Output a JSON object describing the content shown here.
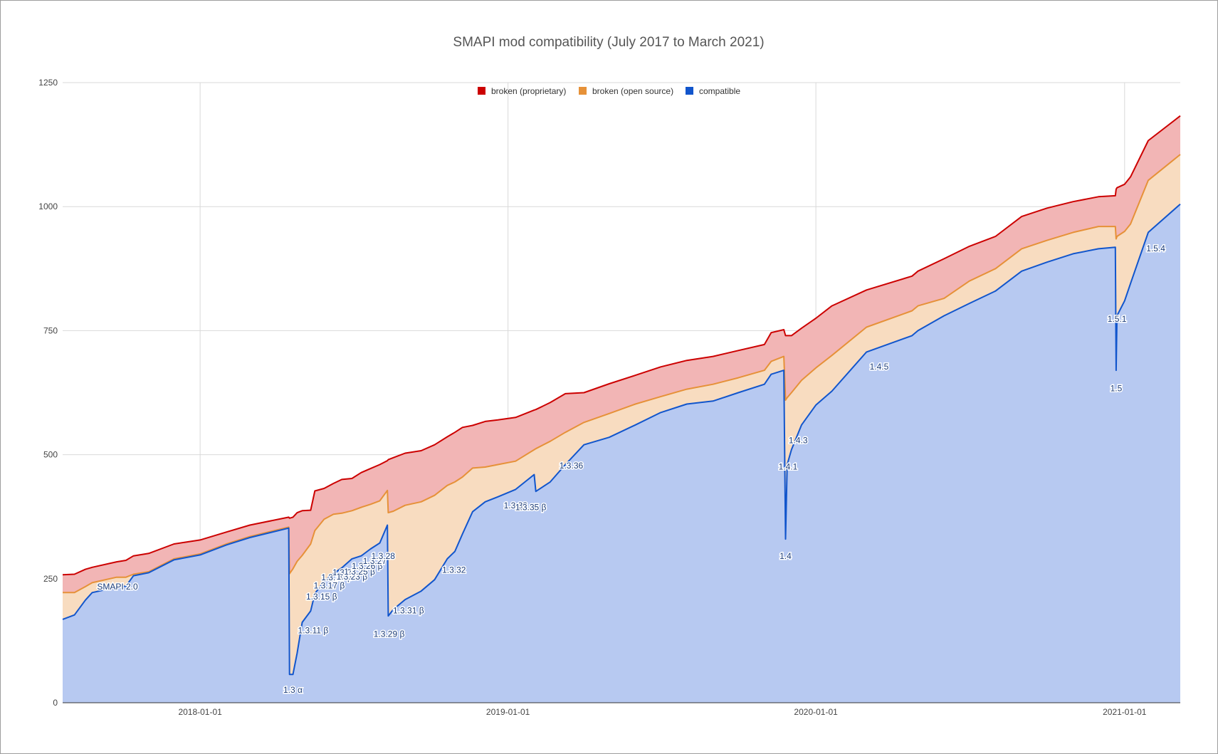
{
  "chart_data": {
    "type": "area",
    "stacked": true,
    "title": "SMAPI mod compatibility (July 2017 to March 2021)",
    "xlabel": "",
    "ylabel": "",
    "xlim": [
      "2017-07-22",
      "2021-03-08"
    ],
    "ylim": [
      0,
      1250
    ],
    "y_ticks": [
      0,
      250,
      500,
      750,
      1000,
      1250
    ],
    "x_ticks": [
      "2018-01-01",
      "2019-01-01",
      "2020-01-01",
      "2021-01-01"
    ],
    "grid": true,
    "legend_position": "top-center",
    "legend": [
      {
        "label": "broken (proprietary)",
        "color": "#cc0000"
      },
      {
        "label": "broken (open source)",
        "color": "#e69138"
      },
      {
        "label": "compatible",
        "color": "#1155cc"
      }
    ],
    "series_colors": {
      "compatible_line": "#1155cc",
      "compatible_fill": "#b7c9f1",
      "open_line": "#e69138",
      "open_fill": "#f8dcc0",
      "prop_line": "#cc0000",
      "prop_fill": "#f2b5b5"
    },
    "points": [
      {
        "x": "2017-07-22",
        "compatible": 168,
        "broken_open_source": 54,
        "broken_proprietary": 36
      },
      {
        "x": "2017-08-05",
        "compatible": 177,
        "broken_open_source": 45,
        "broken_proprietary": 37
      },
      {
        "x": "2017-08-18",
        "compatible": 207,
        "broken_open_source": 27,
        "broken_proprietary": 35
      },
      {
        "x": "2017-08-26",
        "compatible": 222,
        "broken_open_source": 20,
        "broken_proprietary": 31
      },
      {
        "x": "2017-09-24",
        "compatible": 233,
        "broken_open_source": 20,
        "broken_proprietary": 31
      },
      {
        "x": "2017-10-05",
        "compatible": 235,
        "broken_open_source": 18,
        "broken_proprietary": 34
      },
      {
        "x": "2017-10-14",
        "compatible": 256,
        "broken_open_source": 3,
        "broken_proprietary": 37
      },
      {
        "x": "2017-11-01",
        "compatible": 262,
        "broken_open_source": 2,
        "broken_proprietary": 37
      },
      {
        "x": "2017-12-01",
        "compatible": 288,
        "broken_open_source": 2,
        "broken_proprietary": 30
      },
      {
        "x": "2018-01-01",
        "compatible": 298,
        "broken_open_source": 2,
        "broken_proprietary": 28
      },
      {
        "x": "2018-02-01",
        "compatible": 318,
        "broken_open_source": 2,
        "broken_proprietary": 24
      },
      {
        "x": "2018-03-01",
        "compatible": 333,
        "broken_open_source": 2,
        "broken_proprietary": 23
      },
      {
        "x": "2018-04-16",
        "compatible": 352,
        "broken_open_source": 2,
        "broken_proprietary": 20
      },
      {
        "x": "2018-04-17",
        "compatible": 57,
        "broken_open_source": 203,
        "broken_proprietary": 112
      },
      {
        "x": "2018-04-21",
        "compatible": 57,
        "broken_open_source": 213,
        "broken_proprietary": 104
      },
      {
        "x": "2018-04-26",
        "compatible": 100,
        "broken_open_source": 185,
        "broken_proprietary": 98
      },
      {
        "x": "2018-05-02",
        "compatible": 162,
        "broken_open_source": 135,
        "broken_proprietary": 90
      },
      {
        "x": "2018-05-12",
        "compatible": 185,
        "broken_open_source": 135,
        "broken_proprietary": 68
      },
      {
        "x": "2018-05-17",
        "compatible": 220,
        "broken_open_source": 127,
        "broken_proprietary": 80
      },
      {
        "x": "2018-05-28",
        "compatible": 245,
        "broken_open_source": 125,
        "broken_proprietary": 62
      },
      {
        "x": "2018-06-08",
        "compatible": 260,
        "broken_open_source": 120,
        "broken_proprietary": 62
      },
      {
        "x": "2018-06-18",
        "compatible": 272,
        "broken_open_source": 110,
        "broken_proprietary": 68
      },
      {
        "x": "2018-06-30",
        "compatible": 290,
        "broken_open_source": 97,
        "broken_proprietary": 65
      },
      {
        "x": "2018-07-11",
        "compatible": 296,
        "broken_open_source": 98,
        "broken_proprietary": 70
      },
      {
        "x": "2018-07-22",
        "compatible": 310,
        "broken_open_source": 90,
        "broken_proprietary": 72
      },
      {
        "x": "2018-08-02",
        "compatible": 322,
        "broken_open_source": 85,
        "broken_proprietary": 73
      },
      {
        "x": "2018-08-11",
        "compatible": 358,
        "broken_open_source": 70,
        "broken_proprietary": 60
      },
      {
        "x": "2018-08-12",
        "compatible": 175,
        "broken_open_source": 208,
        "broken_proprietary": 107
      },
      {
        "x": "2018-08-18",
        "compatible": 188,
        "broken_open_source": 198,
        "broken_proprietary": 108
      },
      {
        "x": "2018-09-01",
        "compatible": 208,
        "broken_open_source": 190,
        "broken_proprietary": 105
      },
      {
        "x": "2018-09-20",
        "compatible": 225,
        "broken_open_source": 180,
        "broken_proprietary": 103
      },
      {
        "x": "2018-10-06",
        "compatible": 248,
        "broken_open_source": 170,
        "broken_proprietary": 102
      },
      {
        "x": "2018-10-21",
        "compatible": 290,
        "broken_open_source": 148,
        "broken_proprietary": 98
      },
      {
        "x": "2018-10-30",
        "compatible": 305,
        "broken_open_source": 140,
        "broken_proprietary": 100
      },
      {
        "x": "2018-11-08",
        "compatible": 340,
        "broken_open_source": 115,
        "broken_proprietary": 100
      },
      {
        "x": "2018-11-20",
        "compatible": 385,
        "broken_open_source": 88,
        "broken_proprietary": 86
      },
      {
        "x": "2018-12-05",
        "compatible": 405,
        "broken_open_source": 70,
        "broken_proprietary": 92
      },
      {
        "x": "2018-12-20",
        "compatible": 415,
        "broken_open_source": 65,
        "broken_proprietary": 90
      },
      {
        "x": "2019-01-10",
        "compatible": 430,
        "broken_open_source": 57,
        "broken_proprietary": 88
      },
      {
        "x": "2019-02-01",
        "compatible": 460,
        "broken_open_source": 50,
        "broken_proprietary": 80
      },
      {
        "x": "2019-02-03",
        "compatible": 426,
        "broken_open_source": 86,
        "broken_proprietary": 79
      },
      {
        "x": "2019-02-20",
        "compatible": 445,
        "broken_open_source": 82,
        "broken_proprietary": 78
      },
      {
        "x": "2019-03-10",
        "compatible": 480,
        "broken_open_source": 65,
        "broken_proprietary": 78
      },
      {
        "x": "2019-04-01",
        "compatible": 520,
        "broken_open_source": 45,
        "broken_proprietary": 60
      },
      {
        "x": "2019-05-01",
        "compatible": 535,
        "broken_open_source": 48,
        "broken_proprietary": 60
      },
      {
        "x": "2019-06-01",
        "compatible": 560,
        "broken_open_source": 42,
        "broken_proprietary": 58
      },
      {
        "x": "2019-07-01",
        "compatible": 585,
        "broken_open_source": 32,
        "broken_proprietary": 60
      },
      {
        "x": "2019-08-01",
        "compatible": 602,
        "broken_open_source": 30,
        "broken_proprietary": 58
      },
      {
        "x": "2019-09-01",
        "compatible": 608,
        "broken_open_source": 34,
        "broken_proprietary": 56
      },
      {
        "x": "2019-10-01",
        "compatible": 625,
        "broken_open_source": 30,
        "broken_proprietary": 55
      },
      {
        "x": "2019-11-01",
        "compatible": 642,
        "broken_open_source": 28,
        "broken_proprietary": 52
      },
      {
        "x": "2019-11-09",
        "compatible": 662,
        "broken_open_source": 26,
        "broken_proprietary": 58
      },
      {
        "x": "2019-11-24",
        "compatible": 670,
        "broken_open_source": 28,
        "broken_proprietary": 54
      },
      {
        "x": "2019-11-26",
        "compatible": 330,
        "broken_open_source": 280,
        "broken_proprietary": 130
      },
      {
        "x": "2019-11-28",
        "compatible": 480,
        "broken_open_source": 135,
        "broken_proprietary": 125
      },
      {
        "x": "2019-12-03",
        "compatible": 510,
        "broken_open_source": 115,
        "broken_proprietary": 115
      },
      {
        "x": "2019-12-15",
        "compatible": 560,
        "broken_open_source": 90,
        "broken_proprietary": 105
      },
      {
        "x": "2020-01-01",
        "compatible": 600,
        "broken_open_source": 75,
        "broken_proprietary": 100
      },
      {
        "x": "2020-01-20",
        "compatible": 628,
        "broken_open_source": 72,
        "broken_proprietary": 100
      },
      {
        "x": "2020-03-01",
        "compatible": 707,
        "broken_open_source": 50,
        "broken_proprietary": 75
      },
      {
        "x": "2020-04-24",
        "compatible": 740,
        "broken_open_source": 50,
        "broken_proprietary": 70
      },
      {
        "x": "2020-05-01",
        "compatible": 750,
        "broken_open_source": 50,
        "broken_proprietary": 70
      },
      {
        "x": "2020-06-01",
        "compatible": 780,
        "broken_open_source": 35,
        "broken_proprietary": 80
      },
      {
        "x": "2020-07-01",
        "compatible": 805,
        "broken_open_source": 45,
        "broken_proprietary": 70
      },
      {
        "x": "2020-08-01",
        "compatible": 830,
        "broken_open_source": 45,
        "broken_proprietary": 65
      },
      {
        "x": "2020-09-01",
        "compatible": 870,
        "broken_open_source": 45,
        "broken_proprietary": 65
      },
      {
        "x": "2020-10-01",
        "compatible": 888,
        "broken_open_source": 44,
        "broken_proprietary": 65
      },
      {
        "x": "2020-11-01",
        "compatible": 905,
        "broken_open_source": 43,
        "broken_proprietary": 62
      },
      {
        "x": "2020-12-01",
        "compatible": 915,
        "broken_open_source": 45,
        "broken_proprietary": 60
      },
      {
        "x": "2020-12-21",
        "compatible": 918,
        "broken_open_source": 42,
        "broken_proprietary": 62
      },
      {
        "x": "2020-12-22",
        "compatible": 670,
        "broken_open_source": 265,
        "broken_proprietary": 100
      },
      {
        "x": "2020-12-23",
        "compatible": 780,
        "broken_open_source": 160,
        "broken_proprietary": 98
      },
      {
        "x": "2021-01-01",
        "compatible": 810,
        "broken_open_source": 140,
        "broken_proprietary": 95
      },
      {
        "x": "2021-01-08",
        "compatible": 845,
        "broken_open_source": 120,
        "broken_proprietary": 95
      },
      {
        "x": "2021-01-29",
        "compatible": 948,
        "broken_open_source": 105,
        "broken_proprietary": 80
      },
      {
        "x": "2021-03-08",
        "compatible": 1005,
        "broken_open_source": 100,
        "broken_proprietary": 78
      }
    ],
    "annotations": [
      {
        "text": "SMAPI 2.0",
        "x": "2017-09-25",
        "y": 228
      },
      {
        "text": "1.3 α",
        "x": "2018-04-21",
        "y": 20
      },
      {
        "text": "1.3.11 β",
        "x": "2018-05-15",
        "y": 140
      },
      {
        "text": "1.3.15 β",
        "x": "2018-05-25",
        "y": 208
      },
      {
        "text": "1.3.17 β",
        "x": "2018-06-03",
        "y": 230
      },
      {
        "text": "1.3.19 β",
        "x": "2018-06-12",
        "y": 247
      },
      {
        "text": "1.3.21",
        "x": "2018-06-21",
        "y": 257
      },
      {
        "text": "1.3.23 β",
        "x": "2018-06-30",
        "y": 248
      },
      {
        "text": "1.3.25 β",
        "x": "2018-07-09",
        "y": 258
      },
      {
        "text": "1.3.26 β",
        "x": "2018-07-18",
        "y": 270
      },
      {
        "text": "1.3.27",
        "x": "2018-07-27",
        "y": 280
      },
      {
        "text": "1.3.28",
        "x": "2018-08-06",
        "y": 290
      },
      {
        "text": "1.3.29 β",
        "x": "2018-08-13",
        "y": 133
      },
      {
        "text": "1.3.31 β",
        "x": "2018-09-05",
        "y": 180
      },
      {
        "text": "1.3.32",
        "x": "2018-10-29",
        "y": 262
      },
      {
        "text": "1.3.33",
        "x": "2019-01-10",
        "y": 392
      },
      {
        "text": "1.3.35 β",
        "x": "2019-01-28",
        "y": 388
      },
      {
        "text": "1.3.36",
        "x": "2019-03-17",
        "y": 472
      },
      {
        "text": "1.4",
        "x": "2019-11-26",
        "y": 290
      },
      {
        "text": "1.4.1",
        "x": "2019-11-29",
        "y": 470
      },
      {
        "text": "1.4.3",
        "x": "2019-12-11",
        "y": 523
      },
      {
        "text": "1.4.5",
        "x": "2020-03-16",
        "y": 672
      },
      {
        "text": "1.5",
        "x": "2020-12-22",
        "y": 628
      },
      {
        "text": "1.5.1",
        "x": "2020-12-23",
        "y": 768
      },
      {
        "text": "1.5.4",
        "x": "2021-02-07",
        "y": 910
      }
    ]
  }
}
